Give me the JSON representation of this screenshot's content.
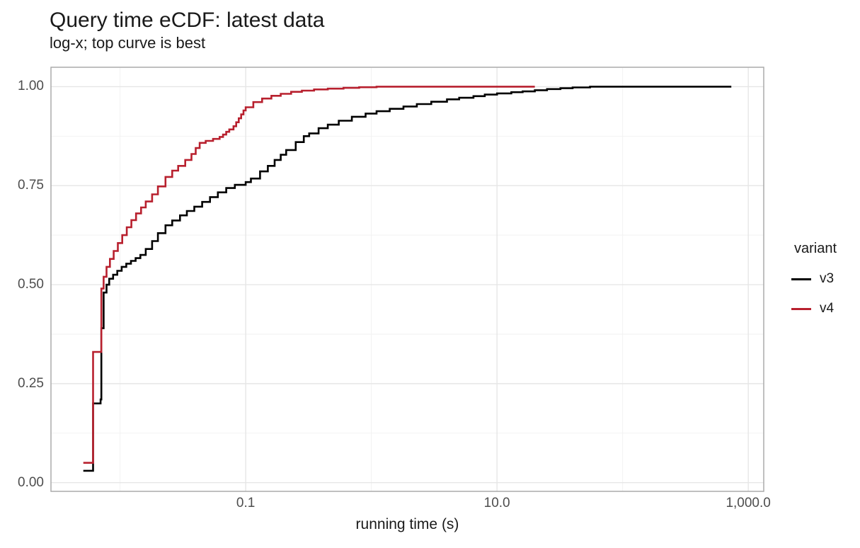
{
  "title": "Query time eCDF: latest data",
  "subtitle": "log-x; top curve is best",
  "chart_data": {
    "type": "line",
    "variant": "ecdf-step",
    "title": "Query time eCDF: latest data",
    "subtitle": "log-x; top curve is best",
    "xlabel": "running time (s)",
    "ylabel": "",
    "x_axis": {
      "scale": "log10",
      "ticks": [
        0.1,
        10,
        1000
      ],
      "tick_labels": [
        "0.1",
        "10.0",
        "1,000.0"
      ],
      "minor_ticks": [
        0.01,
        1,
        100
      ],
      "domain_log10": [
        -2.55,
        3.123
      ]
    },
    "y_axis": {
      "ticks": [
        0,
        0.25,
        0.5,
        0.75,
        1
      ],
      "tick_labels": [
        "0.00",
        "0.25",
        "0.50",
        "0.75",
        "1.00"
      ],
      "minor_ticks": [
        0.125,
        0.375,
        0.625,
        0.875
      ],
      "domain": [
        -0.022,
        1.049
      ]
    },
    "legend": {
      "title": "variant",
      "position": "right"
    },
    "grid": {
      "background": "#FFFFFF",
      "major_color": "#E6E6E6",
      "minor_color": "#F2F2F2",
      "panel_border": "#A6A6A6"
    },
    "series": [
      {
        "name": "v3",
        "color": "#000000",
        "points": [
          [
            0.0051,
            0.03
          ],
          [
            0.0061,
            0.03
          ],
          [
            0.0061,
            0.2
          ],
          [
            0.007,
            0.2
          ],
          [
            0.007,
            0.21
          ],
          [
            0.0071,
            0.21
          ],
          [
            0.0071,
            0.39
          ],
          [
            0.0074,
            0.39
          ],
          [
            0.0074,
            0.48
          ],
          [
            0.0078,
            0.5
          ],
          [
            0.0082,
            0.515
          ],
          [
            0.0088,
            0.525
          ],
          [
            0.0095,
            0.535
          ],
          [
            0.0103,
            0.545
          ],
          [
            0.0112,
            0.553
          ],
          [
            0.0122,
            0.56
          ],
          [
            0.0133,
            0.567
          ],
          [
            0.0145,
            0.575
          ],
          [
            0.016,
            0.59
          ],
          [
            0.018,
            0.61
          ],
          [
            0.02,
            0.63
          ],
          [
            0.023,
            0.65
          ],
          [
            0.026,
            0.662
          ],
          [
            0.03,
            0.675
          ],
          [
            0.034,
            0.686
          ],
          [
            0.039,
            0.697
          ],
          [
            0.045,
            0.709
          ],
          [
            0.052,
            0.721
          ],
          [
            0.06,
            0.733
          ],
          [
            0.07,
            0.744
          ],
          [
            0.082,
            0.752
          ],
          [
            0.1,
            0.759
          ],
          [
            0.11,
            0.768
          ],
          [
            0.13,
            0.786
          ],
          [
            0.15,
            0.8
          ],
          [
            0.17,
            0.815
          ],
          [
            0.19,
            0.828
          ],
          [
            0.21,
            0.84
          ],
          [
            0.25,
            0.86
          ],
          [
            0.29,
            0.875
          ],
          [
            0.32,
            0.882
          ],
          [
            0.38,
            0.895
          ],
          [
            0.45,
            0.904
          ],
          [
            0.55,
            0.914
          ],
          [
            0.7,
            0.924
          ],
          [
            0.9,
            0.932
          ],
          [
            1.1,
            0.938
          ],
          [
            1.4,
            0.944
          ],
          [
            1.8,
            0.95
          ],
          [
            2.3,
            0.956
          ],
          [
            3.0,
            0.962
          ],
          [
            4.0,
            0.968
          ],
          [
            5.0,
            0.972
          ],
          [
            6.5,
            0.976
          ],
          [
            8.0,
            0.98
          ],
          [
            10,
            0.983
          ],
          [
            13,
            0.986
          ],
          [
            16,
            0.988
          ],
          [
            20,
            0.991
          ],
          [
            25,
            0.994
          ],
          [
            32,
            0.996
          ],
          [
            40,
            0.998
          ],
          [
            55,
            1.0
          ],
          [
            733,
            1.0
          ]
        ]
      },
      {
        "name": "v4",
        "color": "#B8202E",
        "points": [
          [
            0.0051,
            0.05
          ],
          [
            0.0061,
            0.05
          ],
          [
            0.0061,
            0.33
          ],
          [
            0.0071,
            0.33
          ],
          [
            0.0071,
            0.49
          ],
          [
            0.0074,
            0.52
          ],
          [
            0.0078,
            0.545
          ],
          [
            0.0083,
            0.565
          ],
          [
            0.0089,
            0.585
          ],
          [
            0.0096,
            0.605
          ],
          [
            0.0104,
            0.625
          ],
          [
            0.0113,
            0.645
          ],
          [
            0.0123,
            0.663
          ],
          [
            0.0134,
            0.68
          ],
          [
            0.0147,
            0.695
          ],
          [
            0.016,
            0.71
          ],
          [
            0.018,
            0.728
          ],
          [
            0.02,
            0.748
          ],
          [
            0.023,
            0.772
          ],
          [
            0.026,
            0.788
          ],
          [
            0.029,
            0.8
          ],
          [
            0.033,
            0.815
          ],
          [
            0.037,
            0.83
          ],
          [
            0.04,
            0.845
          ],
          [
            0.043,
            0.858
          ],
          [
            0.048,
            0.863
          ],
          [
            0.055,
            0.868
          ],
          [
            0.062,
            0.873
          ],
          [
            0.066,
            0.879
          ],
          [
            0.07,
            0.886
          ],
          [
            0.074,
            0.892
          ],
          [
            0.08,
            0.9
          ],
          [
            0.084,
            0.91
          ],
          [
            0.088,
            0.92
          ],
          [
            0.092,
            0.93
          ],
          [
            0.096,
            0.94
          ],
          [
            0.1,
            0.948
          ],
          [
            0.115,
            0.961
          ],
          [
            0.135,
            0.97
          ],
          [
            0.16,
            0.977
          ],
          [
            0.19,
            0.982
          ],
          [
            0.23,
            0.987
          ],
          [
            0.28,
            0.99
          ],
          [
            0.35,
            0.993
          ],
          [
            0.45,
            0.995
          ],
          [
            0.6,
            0.997
          ],
          [
            0.8,
            0.9985
          ],
          [
            1.1,
            1.0
          ],
          [
            20,
            1.0
          ]
        ]
      }
    ]
  }
}
